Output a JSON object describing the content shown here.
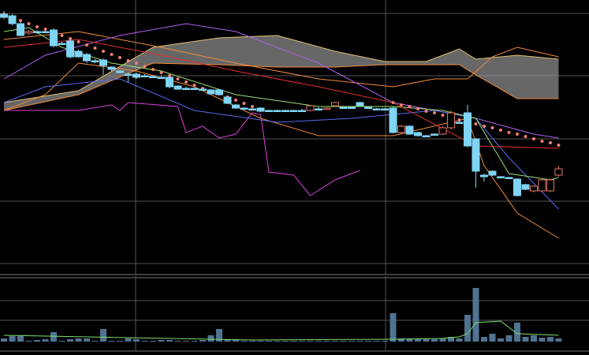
{
  "chart_data": [
    {
      "type": "candlestick",
      "xlim": [
        -0.48,
        70.67
      ],
      "xticks": [
        15.9,
        46.1
      ],
      "ylim": [
        0,
        340
      ],
      "yticks": [
        6,
        85,
        164,
        244,
        323
      ],
      "grid": true,
      "up_color": "#e07565",
      "down_color": "#80d4f4",
      "open": [
        322,
        320,
        310,
        298,
        300,
        300,
        302,
        285,
        288,
        275,
        271,
        263,
        264,
        255,
        250,
        246,
        246,
        244,
        243,
        242,
        242,
        231,
        228,
        228,
        227,
        226,
        226,
        217,
        207,
        203,
        202,
        203,
        200,
        200,
        200,
        200,
        200,
        200,
        202,
        202,
        206,
        204,
        204,
        210,
        204,
        202,
        202,
        203,
        172,
        180,
        172,
        168,
        170,
        170,
        178,
        185,
        197,
        164,
        118,
        123,
        116,
        115,
        113,
        106,
        98,
        98,
        98,
        118
      ],
      "high": [
        326,
        322,
        312,
        302,
        302,
        302,
        304,
        287,
        290,
        277,
        273,
        265,
        266,
        256,
        251,
        248,
        248,
        246,
        245,
        244,
        244,
        232,
        230,
        229,
        228,
        227,
        227,
        218,
        208,
        204,
        203,
        204,
        201,
        201,
        201,
        201,
        202,
        207,
        204,
        204,
        211,
        205,
        205,
        211,
        205,
        203,
        203,
        205,
        182,
        181,
        173,
        169,
        171,
        180,
        200,
        187,
        207,
        165,
        120,
        124,
        117,
        116,
        114,
        107,
        105,
        113,
        114,
        130
      ],
      "low": [
        316,
        308,
        294,
        296,
        297,
        298,
        280,
        283,
        266,
        267,
        260,
        260,
        245,
        250,
        247,
        236,
        240,
        242,
        241,
        240,
        228,
        226,
        227,
        226,
        225,
        220,
        219,
        208,
        202,
        201,
        201,
        198,
        199,
        199,
        199,
        199,
        198,
        199,
        200,
        201,
        205,
        203,
        203,
        205,
        203,
        201,
        201,
        171,
        170,
        169,
        167,
        166,
        169,
        169,
        176,
        183,
        153,
        102,
        110,
        117,
        114,
        113,
        91,
        99,
        96,
        97,
        97,
        116
      ],
      "close": [
        318,
        310,
        295,
        300,
        299,
        300,
        282,
        284,
        268,
        268,
        263,
        262,
        257,
        252,
        248,
        245,
        242,
        244,
        242,
        242,
        230,
        227,
        228,
        227,
        226,
        221,
        220,
        209,
        203,
        202,
        202,
        199,
        200,
        200,
        200,
        200,
        200,
        206,
        202,
        203,
        210,
        204,
        204,
        206,
        204,
        202,
        202,
        172,
        180,
        170,
        168,
        168,
        170,
        178,
        197,
        185,
        155,
        123,
        116,
        118,
        116,
        115,
        92,
        100,
        104,
        112,
        112,
        126
      ],
      "cloud": {
        "color": "#8a8a8a",
        "x": [
          0,
          9,
          18,
          26,
          33,
          40,
          46,
          51,
          55,
          57,
          62,
          67
        ],
        "upper": [
          210,
          225,
          280,
          292,
          295,
          275,
          262,
          262,
          278,
          265,
          270,
          265
        ],
        "lower": [
          200,
          220,
          260,
          258,
          255,
          255,
          258,
          258,
          258,
          245,
          215,
          215
        ]
      },
      "lines": [
        {
          "color": "#e040e0",
          "x": [
            0,
            9,
            13,
            14,
            15,
            21,
            22,
            24,
            26,
            28,
            30,
            31,
            32,
            35,
            37,
            40,
            43
          ],
          "values": [
            200,
            200,
            207,
            200,
            210,
            205,
            172,
            180,
            165,
            170,
            197,
            195,
            122,
            118,
            92,
            112,
            124
          ]
        },
        {
          "color": "#f08a3a",
          "x": [
            0,
            5,
            9,
            16,
            23,
            31,
            38,
            47,
            56,
            58,
            62,
            67
          ],
          "values": [
            200,
            220,
            260,
            250,
            230,
            190,
            168,
            168,
            190,
            130,
            70,
            38
          ]
        },
        {
          "color": "#f08a3a",
          "x": [
            0,
            9,
            19,
            28,
            38,
            47,
            52,
            56,
            59,
            62,
            67
          ],
          "values": [
            290,
            300,
            280,
            260,
            240,
            230,
            240,
            240,
            268,
            280,
            268
          ]
        },
        {
          "color": "#b060f0",
          "x": [
            0,
            5,
            14,
            22,
            28,
            38,
            47,
            57,
            64,
            67
          ],
          "values": [
            240,
            270,
            295,
            310,
            300,
            260,
            210,
            190,
            170,
            165
          ]
        },
        {
          "color": "#5a6cf0",
          "x": [
            0,
            5,
            14,
            23,
            33,
            42,
            52,
            57,
            61,
            67
          ],
          "values": [
            210,
            230,
            240,
            200,
            185,
            190,
            200,
            190,
            140,
            75
          ]
        },
        {
          "color": "#9be070",
          "x": [
            0,
            3,
            7,
            13,
            19,
            28,
            38,
            47,
            53,
            57,
            61,
            66,
            67
          ],
          "values": [
            300,
            305,
            280,
            260,
            250,
            220,
            205,
            205,
            200,
            190,
            120,
            112,
            115
          ]
        },
        {
          "color": "#e03030",
          "x": [
            0,
            9,
            19,
            28,
            38,
            47,
            57,
            67
          ],
          "values": [
            280,
            290,
            270,
            250,
            230,
            210,
            155,
            152
          ]
        }
      ],
      "sar": {
        "color": "#f08070",
        "values": [
          322,
          318,
          314,
          310,
          306,
          303,
          299,
          295,
          291,
          287,
          283,
          279,
          275,
          271,
          267,
          263,
          260,
          256,
          252,
          248,
          244,
          240,
          236,
          232,
          228,
          224,
          221,
          217,
          213,
          209,
          205,
          201,
          null,
          null,
          null,
          null,
          null,
          null,
          null,
          null,
          null,
          null,
          null,
          null,
          null,
          null,
          null,
          210,
          207,
          205,
          202,
          199,
          197,
          194,
          191,
          188,
          186,
          183,
          180,
          178,
          175,
          172,
          170,
          167,
          164,
          161,
          159,
          156
        ]
      }
    },
    {
      "type": "bar",
      "xlim": [
        -0.48,
        70.67
      ],
      "xticks": [
        15.9,
        46.1
      ],
      "ylim": [
        0,
        83
      ],
      "yticks": [
        27,
        52
      ],
      "grid": true,
      "color": "#4f7393",
      "values": [
        4,
        7,
        7,
        1,
        2,
        3,
        12,
        1,
        3,
        4,
        4,
        1,
        16,
        1,
        1,
        4,
        3,
        1,
        1,
        2,
        2,
        1,
        1,
        1,
        2,
        8,
        16,
        3,
        2,
        1,
        1,
        1,
        1,
        1,
        1,
        1,
        1,
        1,
        1,
        1,
        1,
        1,
        1,
        1,
        1,
        1,
        1,
        36,
        4,
        4,
        3,
        3,
        3,
        4,
        6,
        4,
        34,
        68,
        6,
        10,
        4,
        8,
        24,
        6,
        8,
        5,
        6,
        4
      ],
      "lines": [
        {
          "color": "#7fe070",
          "x": [
            0,
            10,
            30,
            47,
            53,
            55,
            56,
            57,
            60,
            62,
            67
          ],
          "values": [
            8,
            6,
            2,
            3,
            4,
            6,
            10,
            24,
            26,
            10,
            8
          ]
        }
      ]
    }
  ]
}
